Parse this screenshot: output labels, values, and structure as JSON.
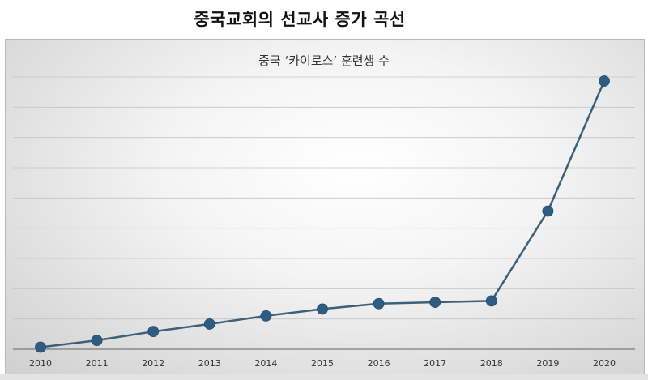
{
  "page": {
    "title": "중국교회의 선교사 증가 곡선"
  },
  "chart_data": {
    "type": "line",
    "title": "중국 ‘카이로스’ 훈련생 수",
    "x": [
      "2010",
      "2011",
      "2012",
      "2013",
      "2014",
      "2015",
      "2016",
      "2017",
      "2018",
      "2019",
      "2020"
    ],
    "series": [
      {
        "values": [
          0.3,
          1.3,
          2.6,
          3.7,
          4.9,
          5.9,
          6.7,
          6.9,
          7.1,
          20.3,
          39.4
        ],
        "color": "#2e5d82"
      }
    ],
    "ylim": [
      0,
      40
    ],
    "yticks_count": 9,
    "ytick_labels_shown": false,
    "grid": "horizontal",
    "legend": "none",
    "line_color": "#3e5f78",
    "marker_color": "#2e5d82"
  }
}
